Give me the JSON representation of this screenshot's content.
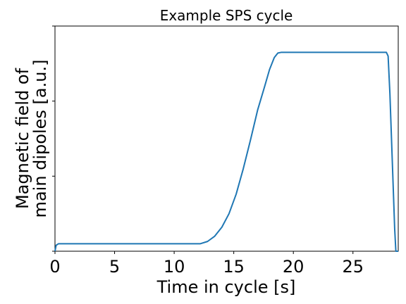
{
  "chart_data": {
    "type": "line",
    "title": "Example SPS cycle",
    "xlabel": "Time in cycle [s]",
    "ylabel_lines": [
      "Magnetic field of",
      "main dipoles [a.u.]"
    ],
    "xlim": [
      0,
      28.8
    ],
    "ylim": [
      0,
      3
    ],
    "x_ticks": [
      0,
      5,
      10,
      15,
      20,
      25
    ],
    "x_tick_labels": [
      "0",
      "5",
      "10",
      "15",
      "20",
      "25"
    ],
    "y_ticks": [
      0,
      1,
      2,
      3
    ],
    "y_tick_labels": [
      "",
      "",
      "",
      ""
    ],
    "grid": false,
    "line_color": "#1f77b4",
    "series": [
      {
        "x": [
          0,
          0.1,
          0.3,
          12.2,
          12.8,
          13.4,
          14.0,
          14.6,
          15.2,
          15.8,
          16.4,
          17.0,
          17.6,
          18.0,
          18.4,
          18.7,
          19.0,
          27.8,
          27.95,
          28.1,
          28.3,
          28.5,
          28.6,
          28.8
        ],
        "y": [
          0,
          0.08,
          0.1,
          0.1,
          0.13,
          0.2,
          0.32,
          0.5,
          0.76,
          1.1,
          1.48,
          1.88,
          2.2,
          2.42,
          2.58,
          2.64,
          2.65,
          2.65,
          2.6,
          2.1,
          1.2,
          0.3,
          0.0,
          0.0
        ]
      }
    ]
  }
}
